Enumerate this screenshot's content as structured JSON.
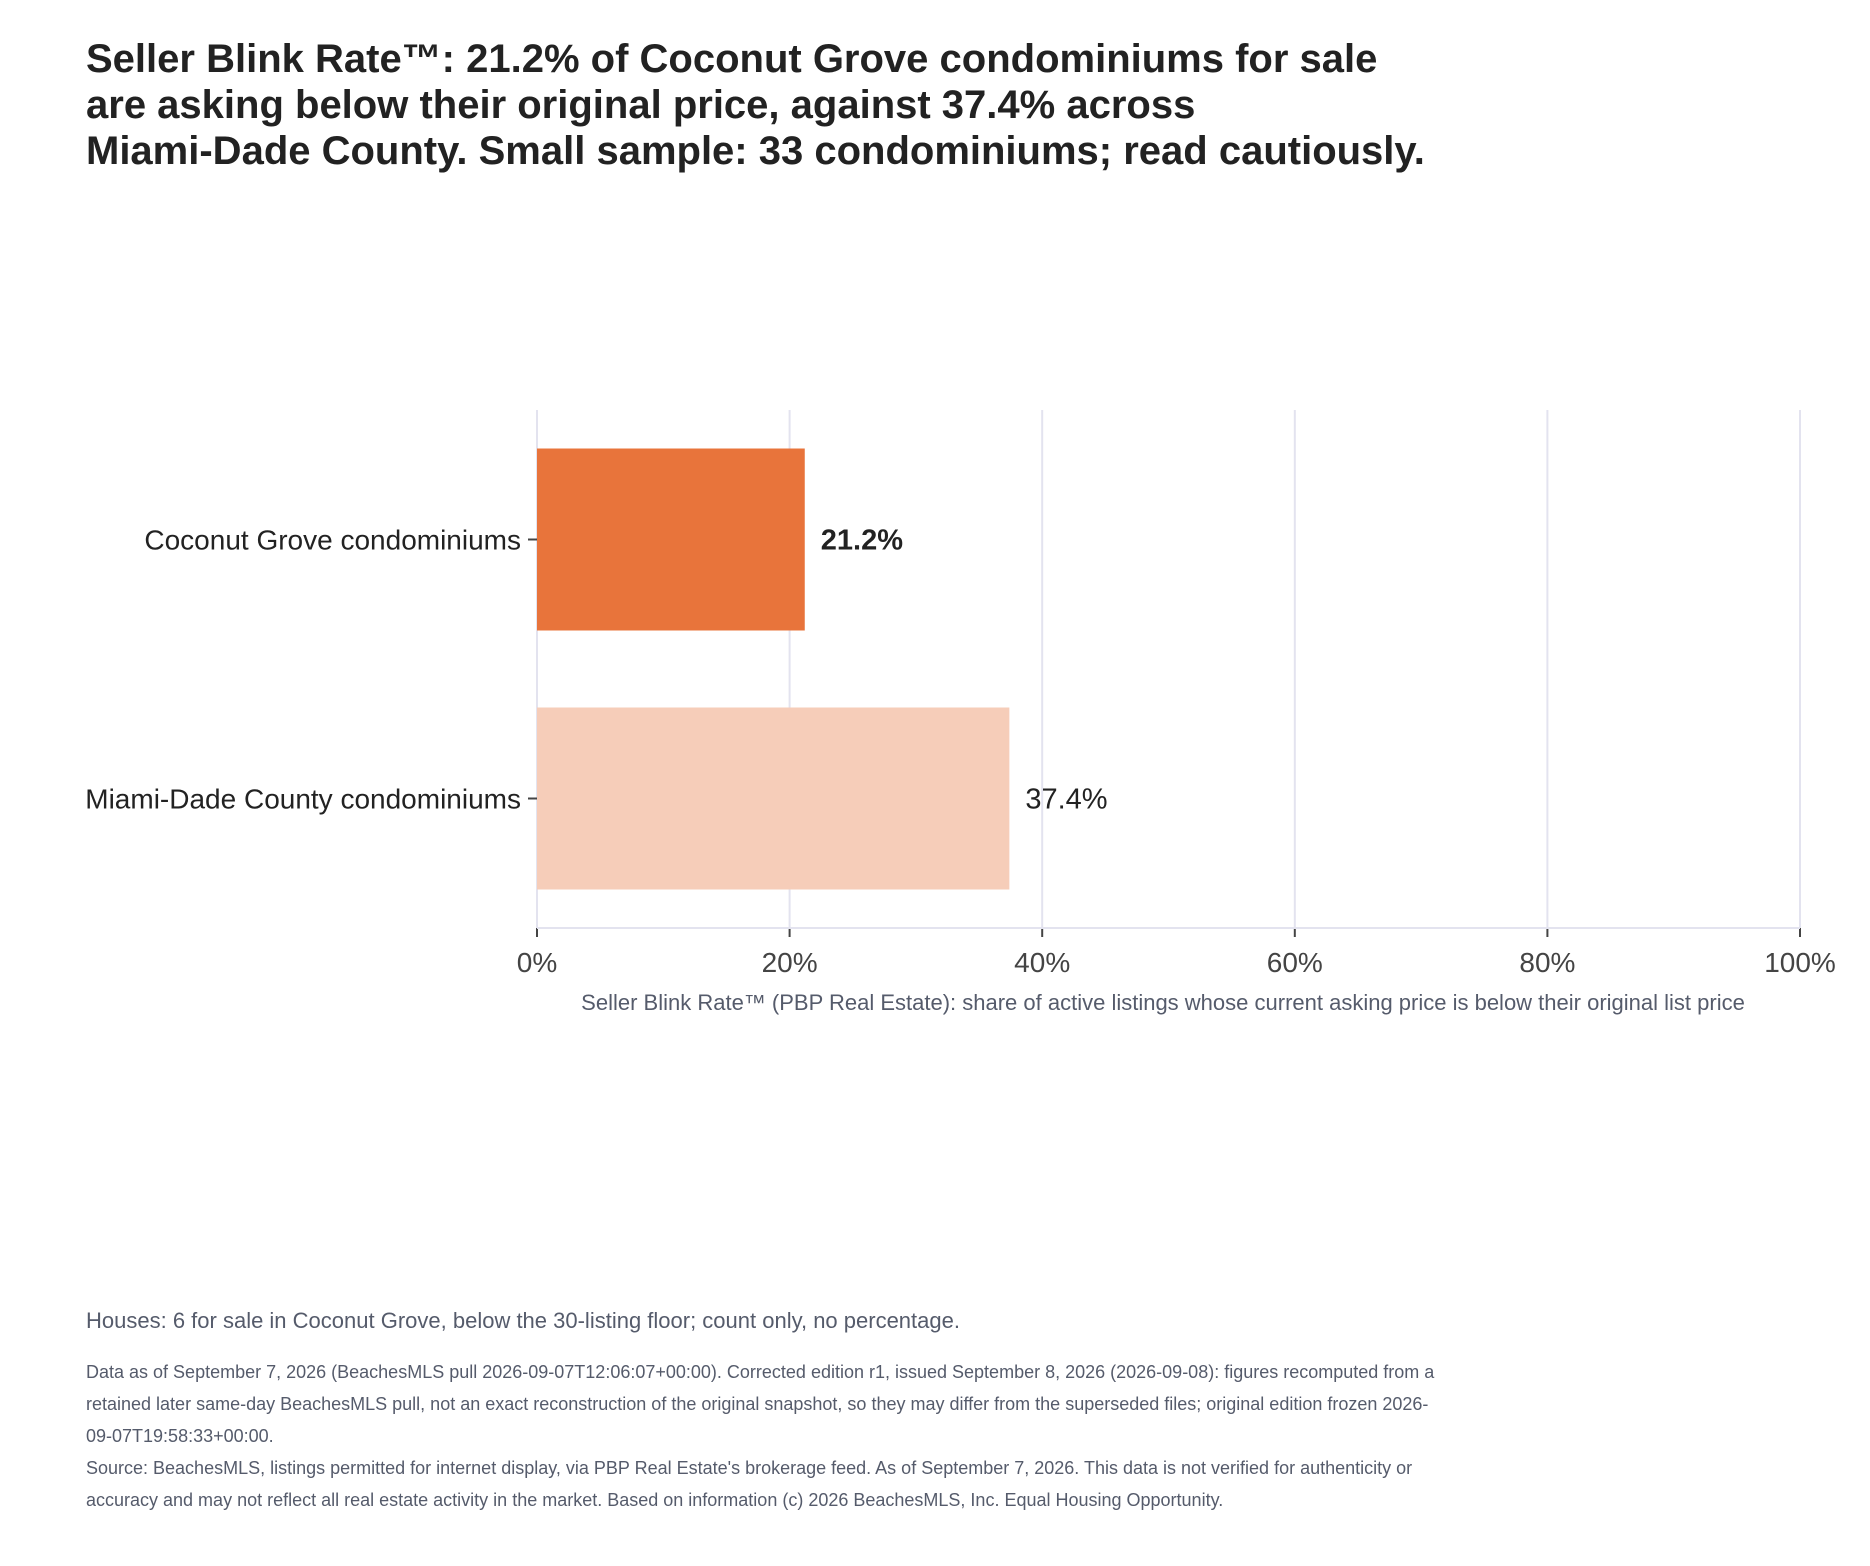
{
  "title": "Seller Blink Rate™: 21.2% of Coconut Grove condominiums for sale\nare asking below their original price, against 37.4% across\nMiami-Dade County. Small sample: 33 condominiums; read cautiously.",
  "chart_data": {
    "type": "bar",
    "orientation": "horizontal",
    "categories": [
      "Coconut Grove condominiums",
      "Miami-Dade County condominiums"
    ],
    "values": [
      21.2,
      37.4
    ],
    "data_labels": [
      "21.2%",
      "37.4%"
    ],
    "bar_colors": [
      "#e8743b",
      "#f6cdb9"
    ],
    "xlabel": "Seller Blink Rate™ (PBP Real Estate): share of active listings whose current asking price is below their original list price",
    "xlim": [
      0,
      100
    ],
    "x_ticks": [
      "0%",
      "20%",
      "40%",
      "60%",
      "80%",
      "100%"
    ],
    "grid": true
  },
  "note": "Houses: 6 for sale in Coconut Grove, below the 30-listing floor; count only, no percentage.",
  "footer": {
    "edition": "Data as of September 7, 2026 (BeachesMLS pull 2026-09-07T12:06:07+00:00). Corrected edition r1, issued September 8, 2026 (2026-09-08): figures recomputed from a retained later same-day BeachesMLS pull, not an exact reconstruction of the original snapshot, so they may differ from the superseded files; original edition frozen 2026-09-07T19:58:33+00:00.",
    "source": "Source: BeachesMLS, listings permitted for internet display, via PBP Real Estate's brokerage feed. As of September 7, 2026. This data is not verified for authenticity or accuracy and may not reflect all real estate activity in the market. Based on information (c) 2026 BeachesMLS, Inc. Equal Housing Opportunity."
  }
}
